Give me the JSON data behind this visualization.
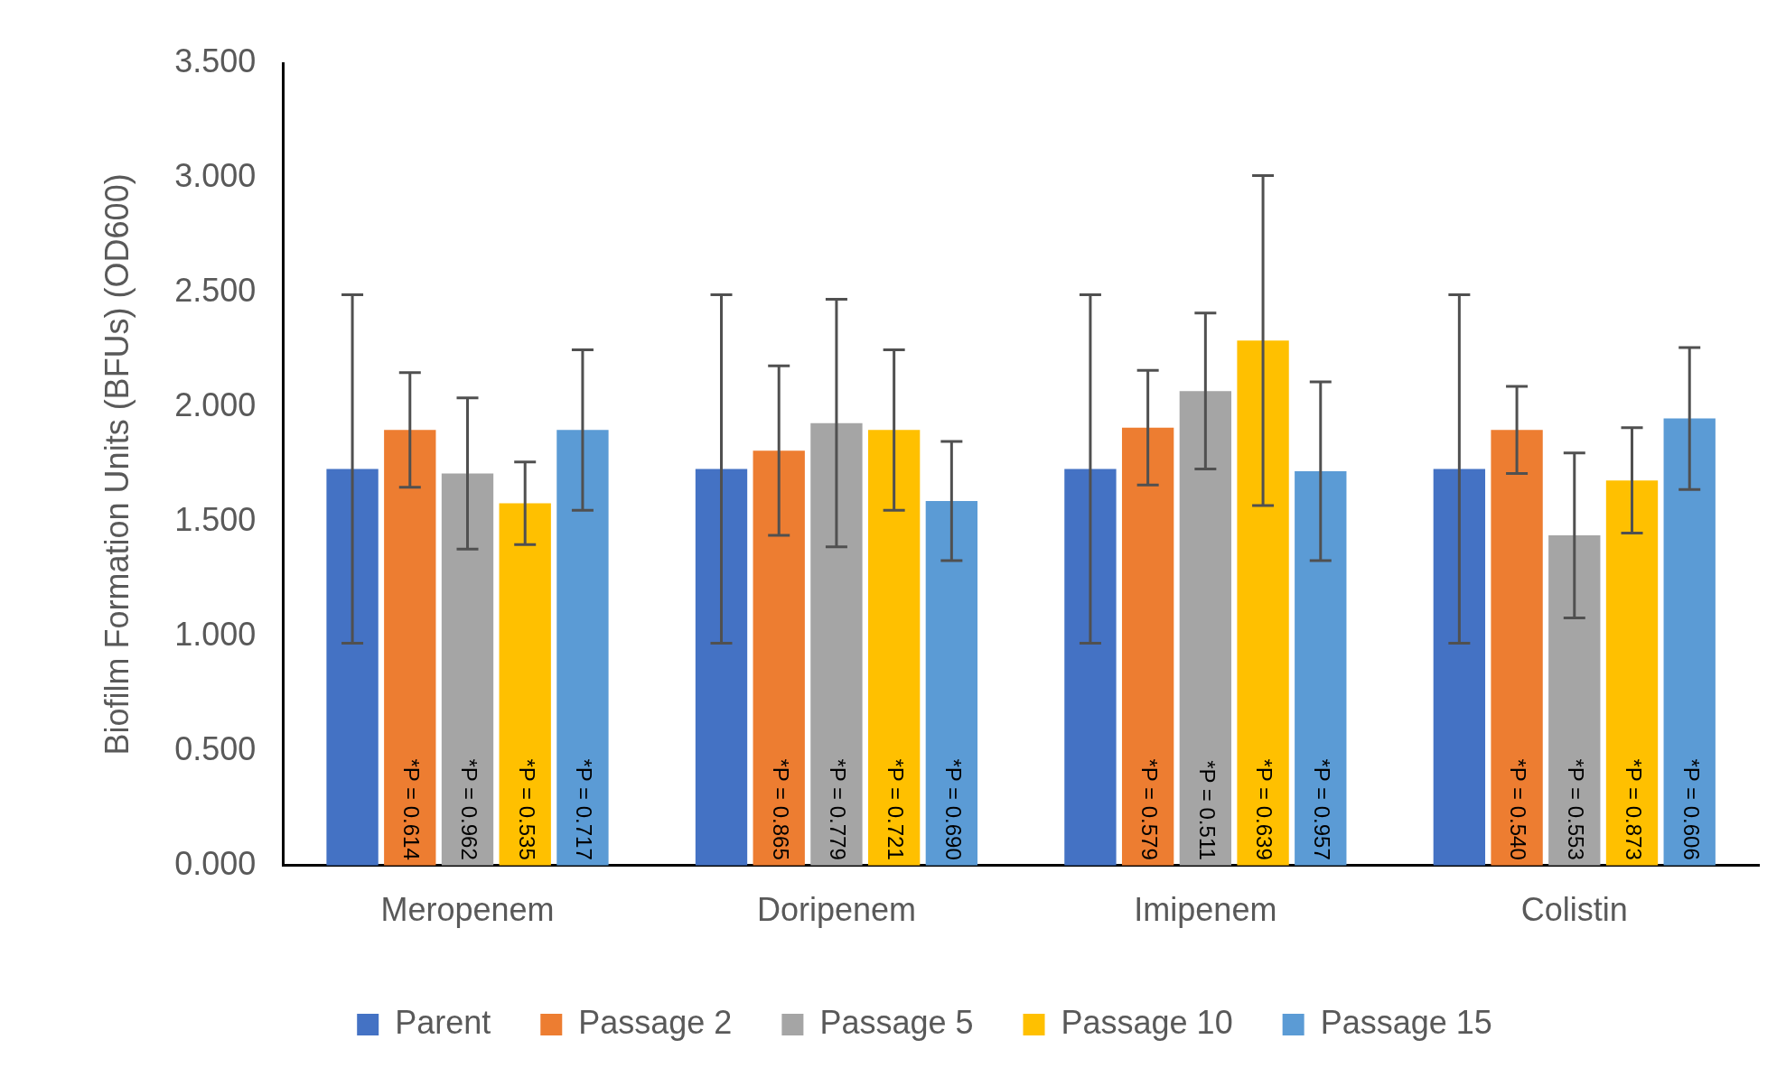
{
  "chart_data": {
    "type": "bar",
    "ylabel": "Biofilm Formation Units (BFUs) (OD600)",
    "categories": [
      "Meropenem",
      "Doripenem",
      "Imipenem",
      "Colistin"
    ],
    "series": [
      {
        "name": "Parent",
        "color": "#4472c4",
        "values": [
          1.73,
          1.73,
          1.73,
          1.73
        ],
        "errors": [
          0.76,
          0.76,
          0.76,
          0.76
        ]
      },
      {
        "name": "Passage 2",
        "color": "#ed7d31",
        "values": [
          1.9,
          1.81,
          1.91,
          1.9
        ],
        "errors": [
          0.25,
          0.37,
          0.25,
          0.19
        ]
      },
      {
        "name": "Passage 5",
        "color": "#a5a5a5",
        "values": [
          1.71,
          1.93,
          2.07,
          1.44
        ],
        "errors": [
          0.33,
          0.54,
          0.34,
          0.36
        ]
      },
      {
        "name": "Passage 10",
        "color": "#ffc000",
        "values": [
          1.58,
          1.9,
          2.29,
          1.68
        ],
        "errors": [
          0.18,
          0.35,
          0.72,
          0.23
        ]
      },
      {
        "name": "Passage 15",
        "color": "#5b9bd5",
        "values": [
          1.9,
          1.59,
          1.72,
          1.95
        ],
        "errors": [
          0.35,
          0.26,
          0.39,
          0.31
        ]
      }
    ],
    "annotations": [
      "*P = 0.614",
      "*P = 0.865",
      "*P = 0.579",
      "*P = 0.540",
      "*P = 0.962",
      "*P = 0.779",
      "*P = 0.511",
      "*P = 0.553",
      "*P = 0.535",
      "*P = 0.721",
      "*P = 0.639",
      "*P = 0.873",
      "*P = 0.717",
      "*P = 0.690",
      "*P = 0.957",
      "*P = 0.606"
    ],
    "ylim": [
      0,
      3.5
    ],
    "yticks": [
      {
        "value": 0,
        "label": "0.000"
      },
      {
        "value": 0.5,
        "label": "0.500"
      },
      {
        "value": 1,
        "label": "1.000"
      },
      {
        "value": 1.5,
        "label": "1.500"
      },
      {
        "value": 2,
        "label": "2.000"
      },
      {
        "value": 2.5,
        "label": "2.500"
      },
      {
        "value": 3,
        "label": "3.000"
      },
      {
        "value": 3.5,
        "label": "3.500"
      }
    ],
    "grid": false,
    "legend": "bottom"
  }
}
